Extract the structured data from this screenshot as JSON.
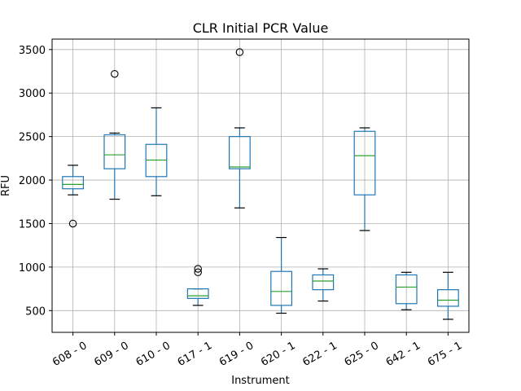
{
  "chart_data": {
    "type": "box",
    "title": "CLR Initial PCR Value",
    "xlabel": "Instrument",
    "ylabel": "RFU",
    "ylim": [
      250,
      3620
    ],
    "yticks": [
      500,
      1000,
      1500,
      2000,
      2500,
      3000,
      3500
    ],
    "grid": true,
    "categories": [
      "608 - 0",
      "609 - 0",
      "610 - 0",
      "617 - 1",
      "619 - 0",
      "620 - 1",
      "622 - 1",
      "625 - 0",
      "642 - 1",
      "675 - 1"
    ],
    "boxes": [
      {
        "label": "608 - 0",
        "whisker_low": 1830,
        "q1": 1900,
        "median": 1950,
        "q3": 2040,
        "whisker_high": 2170,
        "outliers": [
          1500
        ]
      },
      {
        "label": "609 - 0",
        "whisker_low": 1780,
        "q1": 2130,
        "median": 2290,
        "q3": 2520,
        "whisker_high": 2540,
        "outliers": [
          3220
        ]
      },
      {
        "label": "610 - 0",
        "whisker_low": 1820,
        "q1": 2040,
        "median": 2230,
        "q3": 2410,
        "whisker_high": 2830,
        "outliers": []
      },
      {
        "label": "617 - 1",
        "whisker_low": 560,
        "q1": 640,
        "median": 670,
        "q3": 750,
        "whisker_high": 750,
        "outliers": [
          980,
          940
        ]
      },
      {
        "label": "619 - 0",
        "whisker_low": 1680,
        "q1": 2130,
        "median": 2150,
        "q3": 2500,
        "whisker_high": 2600,
        "outliers": [
          3470
        ]
      },
      {
        "label": "620 - 1",
        "whisker_low": 470,
        "q1": 560,
        "median": 720,
        "q3": 950,
        "whisker_high": 1340,
        "outliers": []
      },
      {
        "label": "622 - 1",
        "whisker_low": 610,
        "q1": 740,
        "median": 840,
        "q3": 910,
        "whisker_high": 980,
        "outliers": []
      },
      {
        "label": "625 - 0",
        "whisker_low": 1420,
        "q1": 1830,
        "median": 2280,
        "q3": 2560,
        "whisker_high": 2600,
        "outliers": []
      },
      {
        "label": "642 - 1",
        "whisker_low": 510,
        "q1": 580,
        "median": 770,
        "q3": 910,
        "whisker_high": 940,
        "outliers": []
      },
      {
        "label": "675 - 1",
        "whisker_low": 400,
        "q1": 550,
        "median": 620,
        "q3": 740,
        "whisker_high": 940,
        "outliers": []
      }
    ],
    "colors": {
      "box": "#1f77b4",
      "median": "#2ca02c",
      "whisker_cap": "#000000",
      "outlier": "#000000",
      "grid": "#b0b0b0"
    }
  }
}
